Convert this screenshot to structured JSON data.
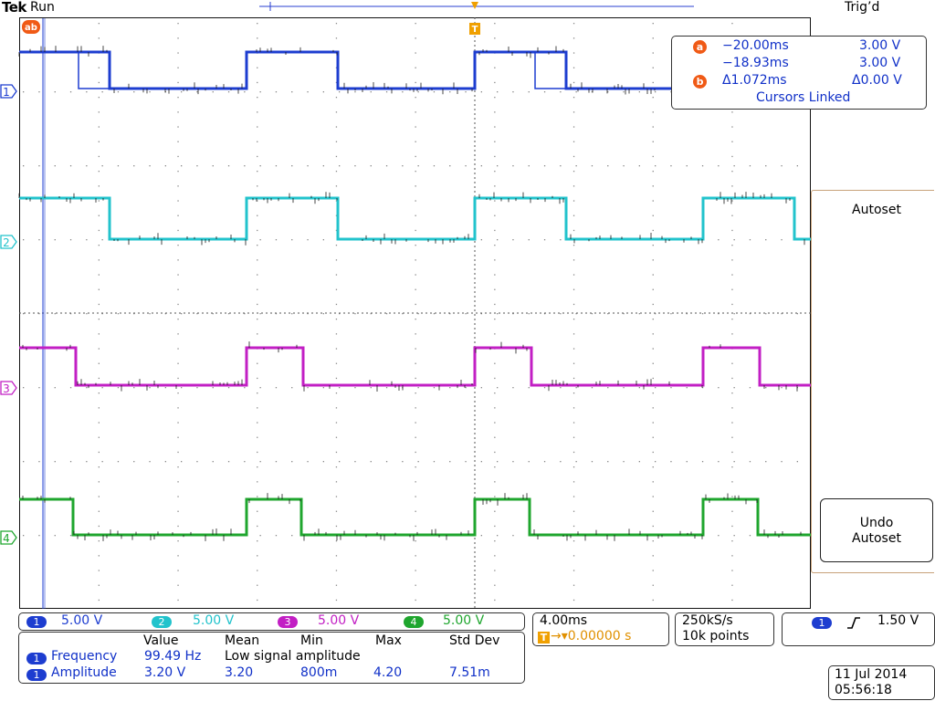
{
  "header": {
    "brand": "Tek",
    "acquisition_state": "Run",
    "trigger_status": "Trig’d",
    "cursor_marker_label": "ab",
    "trigger_marker_label": "T"
  },
  "channels": [
    {
      "id": "1",
      "color": "#1d3dd0",
      "scale": "5.00 V",
      "high_y": 57,
      "low_y": 97
    },
    {
      "id": "2",
      "color": "#22c3cc",
      "scale": "5.00 V",
      "high_y": 217,
      "low_y": 262
    },
    {
      "id": "3",
      "color": "#c21fc4",
      "scale": "5.00 V",
      "high_y": 381,
      "low_y": 422
    },
    {
      "id": "4",
      "color": "#1fa62e",
      "scale": "5.00 V",
      "high_y": 547,
      "low_y": 586
    }
  ],
  "cursors": {
    "a_label": "a",
    "b_label": "b",
    "a_time": "−20.00ms",
    "a_value": "3.00 V",
    "b_time": "−18.93ms",
    "b_value": "3.00 V",
    "delta_time": "Δ1.072ms",
    "delta_value": "Δ0.00 V",
    "mode": "Cursors Linked"
  },
  "side_menu": {
    "autoset_label": "Autoset",
    "undo_label_line1": "Undo",
    "undo_label_line2": "Autoset"
  },
  "horizontal": {
    "time_per_div": "4.00ms",
    "trigger_position_icon": "T",
    "trigger_position": "→▾0.00000 s"
  },
  "acquisition": {
    "sample_rate": "250kS/s",
    "record_length": "10k points"
  },
  "trigger": {
    "source": "1",
    "slope_icon": "rising-edge-icon",
    "level": "1.50 V"
  },
  "measurements": {
    "headers": [
      "Value",
      "Mean",
      "Min",
      "Max",
      "Std Dev"
    ],
    "rows": [
      {
        "source": "1",
        "name": "Frequency",
        "value": "99.49 Hz",
        "mean": "Low signal amplitude",
        "min": "",
        "max": "",
        "std_dev": ""
      },
      {
        "source": "1",
        "name": "Amplitude",
        "value": "3.20 V",
        "mean": "3.20",
        "min": "800m",
        "max": "4.20",
        "std_dev": "7.51m"
      }
    ]
  },
  "datetime": {
    "date": "11 Jul  2014",
    "time": "05:56:18"
  }
}
